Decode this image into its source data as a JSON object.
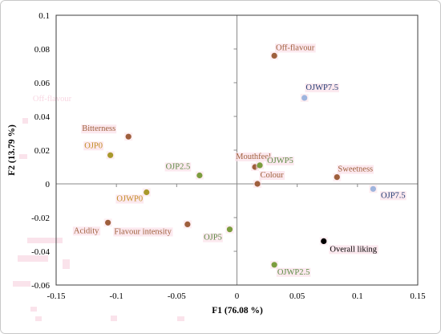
{
  "chart_data": {
    "type": "scatter",
    "title": "",
    "xlabel": "F1 (76.08 %)",
    "ylabel": "F2 (13.79 %)",
    "xlim": [
      -0.15,
      0.15
    ],
    "ylim": [
      -0.06,
      0.1
    ],
    "xticks": [
      -0.15,
      -0.1,
      -0.05,
      0,
      0.05,
      0.1,
      0.15
    ],
    "yticks": [
      0.1,
      0.08,
      0.06,
      0.04,
      0.02,
      0,
      -0.02,
      -0.04,
      -0.06
    ],
    "grid": false,
    "legend": "none",
    "series": [
      {
        "color": "#9e5f3c",
        "label_color": "#a0613d",
        "points": [
          {
            "label": "Off-flavour",
            "x": 0.031,
            "y": 0.076
          },
          {
            "label": "Bitterness",
            "x": -0.09,
            "y": 0.028
          },
          {
            "label": "Mouthfeel",
            "x": 0.015,
            "y": 0.01
          },
          {
            "label": "Colour",
            "x": 0.017,
            "y": 0.0
          },
          {
            "label": "Sweetness",
            "x": 0.083,
            "y": 0.004
          },
          {
            "label": "Acidity",
            "x": -0.107,
            "y": -0.023
          },
          {
            "label": "Flavour intensity",
            "x": -0.041,
            "y": -0.024
          }
        ]
      },
      {
        "color": "#a9992c",
        "label_color": "#c38f24",
        "points": [
          {
            "label": "OJP0",
            "x": -0.105,
            "y": 0.017
          },
          {
            "label": "OJWP0",
            "x": -0.075,
            "y": -0.005
          }
        ]
      },
      {
        "color": "#7c9d3e",
        "label_color": "#5b8b44",
        "points": [
          {
            "label": "OJP2.5",
            "x": -0.031,
            "y": 0.005
          },
          {
            "label": "OJWP5",
            "x": 0.019,
            "y": 0.011
          },
          {
            "label": "OJP5",
            "x": -0.006,
            "y": -0.027
          },
          {
            "label": "OJWP2.5",
            "x": 0.031,
            "y": -0.048
          }
        ]
      },
      {
        "color": "#9fb5de",
        "label_color": "#223d74",
        "points": [
          {
            "label": "OJWP7.5",
            "x": 0.056,
            "y": 0.051
          },
          {
            "label": "OJP7.5",
            "x": 0.113,
            "y": -0.003
          }
        ]
      },
      {
        "color": "#000000",
        "label_color": "#000000",
        "points": [
          {
            "label": "Overall liking",
            "x": 0.072,
            "y": -0.034
          }
        ]
      }
    ]
  },
  "ghost_text": "Off-flavour",
  "colors": {
    "frame": "#3c3c3c",
    "zero_axis": "#8a8a8a",
    "label_highlight": "#fbe2ea",
    "outer_border": "#c8c8c8"
  }
}
